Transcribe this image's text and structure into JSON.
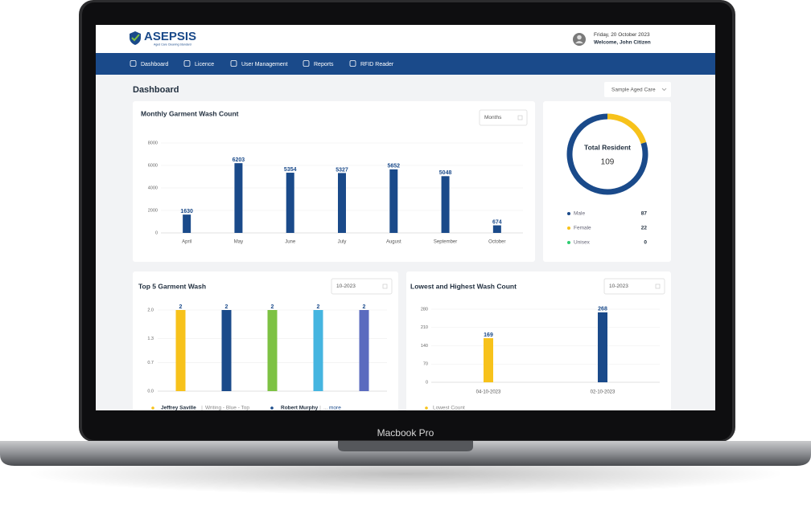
{
  "device_label": "Macbook Pro",
  "header": {
    "brand": "ASEPSIS",
    "tagline": "Aged Care Cleaning Standard",
    "date": "Friday, 20 October 2023",
    "welcome": "Welcome, John Citizen"
  },
  "nav": [
    "Dashboard",
    "Licence",
    "User Management",
    "Reports",
    "RFID Reader"
  ],
  "page": {
    "title": "Dashboard",
    "facility": "Sample Aged Care"
  },
  "chart_data": [
    {
      "type": "bar",
      "title": "Monthly Garment Wash Count",
      "filter": "Months",
      "categories": [
        "April",
        "May",
        "June",
        "July",
        "August",
        "September",
        "October"
      ],
      "values": [
        1630,
        6203,
        5354,
        5327,
        5652,
        5048,
        674
      ],
      "color": "#1a4a8a",
      "ylim": [
        0,
        8000
      ],
      "yticks": [
        0,
        2000,
        4000,
        6000,
        8000
      ]
    },
    {
      "type": "donut",
      "title": "Total Resident",
      "total": 109,
      "categories": [
        "Male",
        "Female",
        "Unisex"
      ],
      "values": [
        87,
        22,
        0
      ],
      "colors": [
        "#1a4a8a",
        "#f7c21b",
        "#2ecc71"
      ]
    },
    {
      "type": "bar",
      "title": "Top 5 Garment Wash",
      "filter": "10-2023",
      "categories": [
        null,
        null,
        null,
        null,
        null
      ],
      "values": [
        2,
        2,
        2,
        2,
        2
      ],
      "colors": [
        "#f7c21b",
        "#1a4a8a",
        "#7dc243",
        "#45b5e0",
        "#5b6bbf"
      ],
      "ylim": [
        0,
        2
      ],
      "yticks": [
        {
          "value": 0,
          "label": "0.0"
        },
        0.7,
        1.3,
        {
          "value": 2,
          "label": "2.0"
        }
      ],
      "legend": [
        {
          "name": "Jeffrey Saville",
          "detail": "Writing - Blue - Top"
        },
        {
          "name": "Robert Murphy",
          "detail": "..."
        }
      ],
      "more": "more"
    },
    {
      "type": "bar",
      "title": "Lowest and Highest Wash Count",
      "filter": "10-2023",
      "categories": [
        "04-10-2023",
        "02-10-2023"
      ],
      "values": [
        169,
        268
      ],
      "colors": [
        "#f7c21b",
        "#1a4a8a"
      ],
      "ylim": [
        0,
        280
      ],
      "yticks": [
        0,
        70,
        140,
        210,
        280
      ],
      "legend": [
        "Lowest Count"
      ]
    }
  ]
}
